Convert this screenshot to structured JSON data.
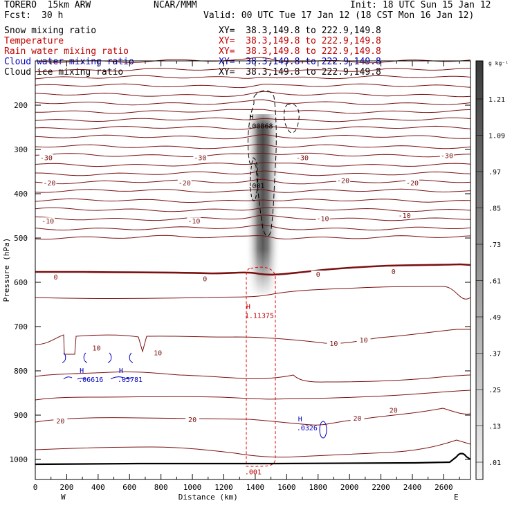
{
  "header": {
    "model": "TORERO  15km ARW",
    "center": "NCAR/MMM",
    "init": "Init: 18 UTC Sun 15 Jan 12",
    "fcst_label": "Fcst:",
    "fcst_value": "30 h",
    "valid": "Valid: 00 UTC Tue 17 Jan 12 (18 CST Mon 16 Jan 12)",
    "fields": [
      {
        "name": "Snow mixing ratio",
        "xy": "XY=  38.3,149.8 to 222.9,149.8",
        "color": "#000000"
      },
      {
        "name": "Temperature",
        "xy": "XY=  38.3,149.8 to 222.9,149.8",
        "color": "#c00000"
      },
      {
        "name": "Rain water mixing ratio",
        "xy": "XY=  38.3,149.8 to 222.9,149.8",
        "color": "#c00000"
      },
      {
        "name": "Cloud water mixing ratio",
        "xy": "XY=  38.3,149.8 to 222.9,149.8",
        "color": "#0000c0"
      },
      {
        "name": "Cloud ice mixing ratio",
        "xy": "XY=  38.3,149.8 to 222.9,149.8",
        "color": "#000000"
      }
    ]
  },
  "chart_data": {
    "type": "cross-section",
    "xlabel": "Distance (km)",
    "ylabel": "Pressure (hPa)",
    "xlim": [
      0,
      2770
    ],
    "ylim": [
      1050,
      100
    ],
    "x_ticks": [
      "0",
      "200",
      "400",
      "600",
      "800",
      "1000",
      "1200",
      "1400",
      "1600",
      "1800",
      "2000",
      "2200",
      "2400",
      "2600"
    ],
    "x_tick_values": [
      0,
      200,
      400,
      600,
      800,
      1000,
      1200,
      1400,
      1600,
      1800,
      2000,
      2200,
      2400,
      2600
    ],
    "y_ticks": [
      "200",
      "300",
      "400",
      "500",
      "600",
      "700",
      "800",
      "900",
      "1000"
    ],
    "y_tick_values": [
      200,
      300,
      400,
      500,
      600,
      700,
      800,
      900,
      1000
    ],
    "west_label": "W",
    "east_label": "E",
    "colorbar": {
      "unit": "g kg⁻¹",
      "labels": [
        "1.21",
        "1.09",
        ".97",
        ".85",
        ".73",
        ".61",
        ".49",
        ".37",
        ".25",
        ".13",
        ".01"
      ],
      "levels": [
        1.21,
        1.09,
        0.97,
        0.85,
        0.73,
        0.61,
        0.49,
        0.37,
        0.25,
        0.13,
        0.01
      ]
    },
    "temperature_labels": [
      {
        "text": "-30",
        "x": 70,
        "p": 323
      },
      {
        "text": "-30",
        "x": 1050,
        "p": 323
      },
      {
        "text": "-30",
        "x": 1700,
        "p": 323
      },
      {
        "text": "-30",
        "x": 2620,
        "p": 318
      },
      {
        "text": "-20",
        "x": 90,
        "p": 380
      },
      {
        "text": "-20",
        "x": 950,
        "p": 380
      },
      {
        "text": "-20",
        "x": 1960,
        "p": 374
      },
      {
        "text": "-20",
        "x": 2400,
        "p": 380
      },
      {
        "text": "-10",
        "x": 80,
        "p": 466
      },
      {
        "text": "-10",
        "x": 1010,
        "p": 466
      },
      {
        "text": "-10",
        "x": 1830,
        "p": 460
      },
      {
        "text": "-10",
        "x": 2350,
        "p": 453
      },
      {
        "text": "0",
        "x": 130,
        "p": 592
      },
      {
        "text": "0",
        "x": 1080,
        "p": 596
      },
      {
        "text": "0",
        "x": 1800,
        "p": 586
      },
      {
        "text": "0",
        "x": 2280,
        "p": 580
      },
      {
        "text": "10",
        "x": 390,
        "p": 752
      },
      {
        "text": "10",
        "x": 780,
        "p": 763
      },
      {
        "text": "10",
        "x": 1900,
        "p": 742
      },
      {
        "text": "10",
        "x": 2090,
        "p": 734
      },
      {
        "text": "20",
        "x": 160,
        "p": 917
      },
      {
        "text": "20",
        "x": 1000,
        "p": 914
      },
      {
        "text": "20",
        "x": 2050,
        "p": 911
      },
      {
        "text": "20",
        "x": 2280,
        "p": 893
      }
    ],
    "maxima": [
      {
        "label": "H",
        "value": ".00868",
        "x": 1380,
        "p": 248,
        "color": "#000000"
      },
      {
        "label": "",
        "value": ".001",
        "x": 1380,
        "p": 383,
        "color": "#000000"
      },
      {
        "label": "H",
        "value": "1.11375",
        "x": 1360,
        "p": 676,
        "color": "#c00000"
      },
      {
        "label": "H",
        "value": ".06616",
        "x": 300,
        "p": 820,
        "color": "#0000c0"
      },
      {
        "label": "H",
        "value": ".05781",
        "x": 550,
        "p": 820,
        "color": "#0000c0"
      },
      {
        "label": "H",
        "value": ".0326",
        "x": 1690,
        "p": 930,
        "color": "#0000c0"
      },
      {
        "label": "",
        "value": ".001",
        "x": 1360,
        "p": 1029,
        "color": "#c00000"
      }
    ]
  }
}
